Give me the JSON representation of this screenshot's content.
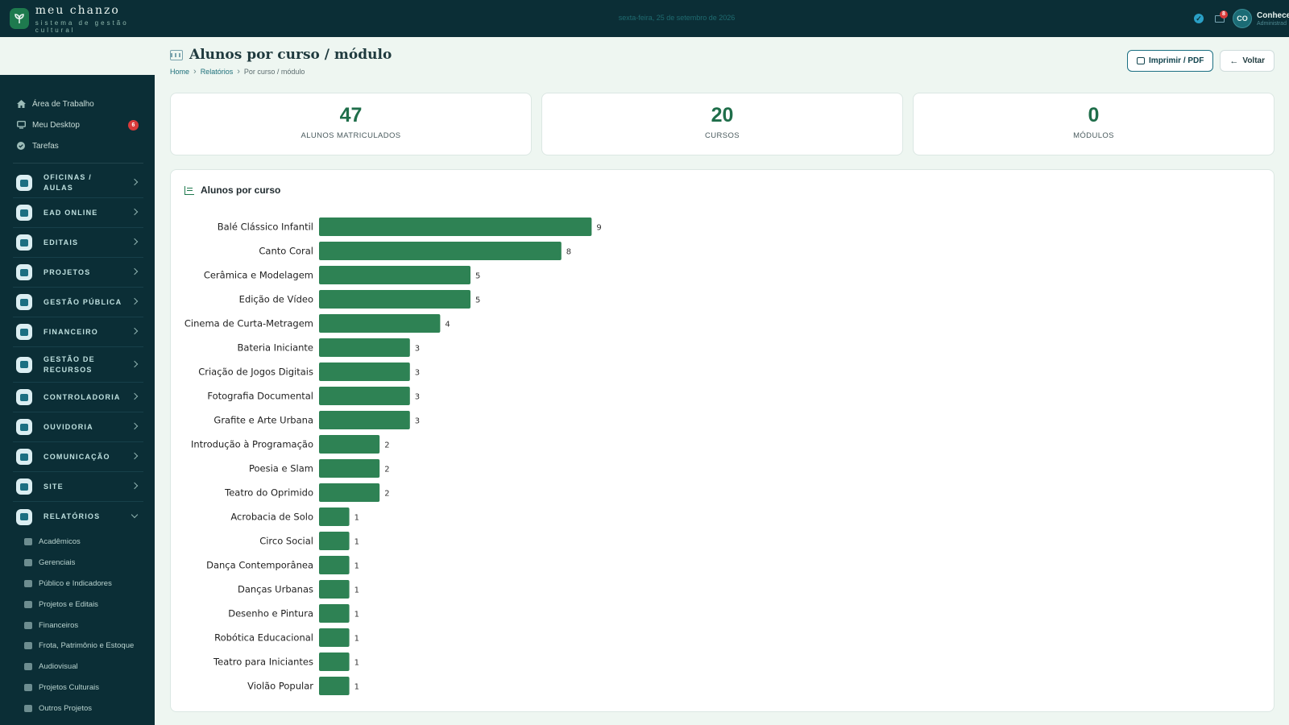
{
  "brand": {
    "name": "meu chanzo",
    "subtitle": "sistema de gestão cultural"
  },
  "topbar": {
    "date": "sexta-feira, 25 de setembro de 2026",
    "mail_count": "8",
    "avatar_initials": "CO",
    "user_name": "Conhece",
    "user_role": "Administrad"
  },
  "sidebar": {
    "quick": [
      {
        "label": "Área de Trabalho",
        "icon": "home-icon"
      },
      {
        "label": "Meu Desktop",
        "icon": "monitor-icon",
        "badge": "6"
      },
      {
        "label": "Tarefas",
        "icon": "check-circle-icon"
      }
    ],
    "sections": [
      {
        "label": "OFICINAS / AULAS",
        "icon": "classroom-icon"
      },
      {
        "label": "EAD ONLINE",
        "icon": "online-course-icon"
      },
      {
        "label": "EDITAIS",
        "icon": "document-icon"
      },
      {
        "label": "PROJETOS",
        "icon": "network-icon"
      },
      {
        "label": "GESTÃO PÚBLICA",
        "icon": "building-icon"
      },
      {
        "label": "FINANCEIRO",
        "icon": "chart-line-icon"
      },
      {
        "label": "GESTÃO DE RECURSOS",
        "icon": "boxes-icon"
      },
      {
        "label": "CONTROLADORIA",
        "icon": "shield-icon"
      },
      {
        "label": "OUVIDORIA",
        "icon": "megaphone-icon"
      },
      {
        "label": "COMUNICAÇÃO",
        "icon": "paper-plane-icon"
      },
      {
        "label": "SITE",
        "icon": "globe-icon"
      },
      {
        "label": "RELATÓRIOS",
        "icon": "pie-chart-icon"
      }
    ],
    "report_items": [
      "Acadêmicos",
      "Gerenciais",
      "Público e Indicadores",
      "Projetos e Editais",
      "Financeiros",
      "Frota, Patrimônio e Estoque",
      "Audiovisual",
      "Projetos Culturais",
      "Outros Projetos"
    ]
  },
  "page": {
    "title": "Alunos por curso / módulo",
    "breadcrumb": [
      "Home",
      "Relatórios",
      "Por curso / módulo"
    ],
    "print_label": "Imprimir / PDF",
    "back_label": "Voltar"
  },
  "stats": [
    {
      "value": "47",
      "label": "ALUNOS MATRICULADOS"
    },
    {
      "value": "20",
      "label": "CURSOS"
    },
    {
      "value": "0",
      "label": "MÓDULOS"
    }
  ],
  "chart_data": {
    "type": "bar",
    "orientation": "horizontal",
    "title": "Alunos por curso",
    "categories": [
      "Balé Clássico Infantil",
      "Canto Coral",
      "Cerâmica e Modelagem",
      "Edição de Vídeo",
      "Cinema de Curta-Metragem",
      "Bateria Iniciante",
      "Criação de Jogos Digitais",
      "Fotografia Documental",
      "Grafite e Arte Urbana",
      "Introdução à Programação",
      "Poesia e Slam",
      "Teatro do Oprimido",
      "Acrobacia de Solo",
      "Circo Social",
      "Dança Contemporânea",
      "Danças Urbanas",
      "Desenho e Pintura",
      "Robótica Educacional",
      "Teatro para Iniciantes",
      "Violão Popular"
    ],
    "values": [
      9,
      8,
      5,
      5,
      4,
      3,
      3,
      3,
      3,
      2,
      2,
      2,
      1,
      1,
      1,
      1,
      1,
      1,
      1,
      1
    ],
    "color": "#2e8254",
    "grid": false,
    "xlim": [
      0,
      9
    ]
  }
}
